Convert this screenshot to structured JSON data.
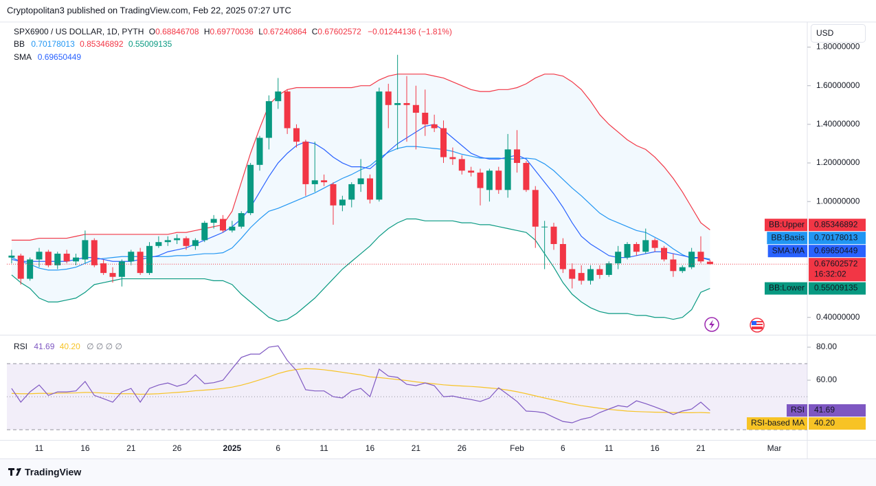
{
  "header": {
    "text": "Cryptopolitan3 published on TradingView.com, Feb 22, 2025 07:27 UTC"
  },
  "footer": {
    "brand": "TradingView"
  },
  "currency": "USD",
  "chart_data": [
    {
      "type": "candlestick",
      "title": "SPX6900 / US DOLLAR, 1D, PYTH",
      "ohlc_labels": [
        "O",
        "H",
        "L",
        "C"
      ],
      "change_text": "−0.01244136 (−1.81%)",
      "legend_labels": [
        "BB",
        "SMA"
      ],
      "countdown": "16:32:02",
      "up_color": "#089981",
      "down_color": "#f23645",
      "categories": [
        null,
        null,
        null,
        "11",
        null,
        null,
        null,
        null,
        "16",
        null,
        null,
        null,
        null,
        "21",
        null,
        null,
        null,
        null,
        "26",
        null,
        null,
        null,
        null,
        null,
        "2025",
        null,
        null,
        null,
        null,
        "6",
        null,
        null,
        null,
        null,
        "11",
        null,
        null,
        null,
        null,
        "16",
        null,
        null,
        null,
        null,
        "21",
        null,
        null,
        null,
        null,
        "26",
        null,
        null,
        null,
        null,
        null,
        "Feb",
        null,
        null,
        null,
        null,
        "6",
        null,
        null,
        null,
        null,
        "11",
        null,
        null,
        null,
        null,
        "16",
        null,
        null,
        null,
        null,
        "21",
        null,
        null,
        null,
        null,
        null,
        null,
        null,
        "Mar",
        null,
        null
      ],
      "open": [
        0.71,
        0.72,
        0.6,
        0.7,
        0.74,
        0.67,
        0.73,
        0.69,
        0.7,
        0.8,
        0.68,
        0.63,
        0.61,
        0.69,
        0.74,
        0.63,
        0.77,
        0.79,
        0.8,
        0.81,
        0.77,
        0.8,
        0.89,
        0.91,
        0.85,
        0.87,
        0.94,
        1.19,
        1.33,
        1.52,
        1.57,
        1.38,
        1.31,
        1.09,
        1.11,
        1.09,
        0.98,
        1.01,
        1.09,
        1.12,
        1.01,
        1.57,
        1.5,
        1.51,
        1.5,
        1.46,
        1.4,
        1.38,
        1.23,
        1.22,
        1.16,
        1.15,
        1.06,
        1.16,
        1.06,
        1.27,
        1.2,
        1.06,
        0.87,
        0.87,
        0.78,
        0.65,
        0.63,
        0.59,
        0.65,
        0.62,
        0.68,
        0.71,
        0.78,
        0.74,
        0.8,
        0.76,
        0.7,
        0.64,
        0.66,
        0.74,
        0.68846708,
        null,
        null,
        null,
        null,
        null,
        null,
        null,
        null,
        null
      ],
      "high": [
        0.75,
        0.73,
        0.71,
        0.76,
        0.75,
        0.74,
        0.75,
        0.73,
        0.85,
        0.81,
        0.7,
        0.66,
        0.7,
        0.75,
        0.76,
        0.79,
        0.82,
        0.82,
        0.83,
        0.82,
        0.81,
        0.9,
        0.93,
        0.93,
        0.9,
        0.95,
        1.2,
        1.34,
        1.55,
        1.64,
        1.58,
        1.4,
        1.32,
        1.31,
        1.14,
        1.1,
        1.03,
        1.1,
        1.22,
        1.14,
        1.59,
        1.61,
        1.76,
        1.65,
        1.6,
        1.58,
        1.45,
        1.42,
        1.28,
        1.24,
        1.18,
        1.17,
        1.17,
        1.18,
        1.35,
        1.37,
        1.21,
        1.08,
        0.9,
        0.89,
        0.81,
        0.68,
        0.67,
        0.67,
        0.67,
        0.69,
        0.77,
        0.79,
        0.79,
        0.86,
        0.81,
        0.77,
        0.73,
        0.67,
        0.76,
        0.82,
        0.69770036,
        null,
        null,
        null,
        null,
        null,
        null,
        null,
        null,
        null
      ],
      "low": [
        0.68,
        0.57,
        0.59,
        0.66,
        0.66,
        0.65,
        0.68,
        0.67,
        0.68,
        0.66,
        0.62,
        0.58,
        0.56,
        0.67,
        0.62,
        0.62,
        0.76,
        0.77,
        0.78,
        0.75,
        0.75,
        0.79,
        0.86,
        0.84,
        0.84,
        0.86,
        0.93,
        1.16,
        1.27,
        1.48,
        1.35,
        1.28,
        1.03,
        1.05,
        1.08,
        0.88,
        0.95,
        0.97,
        1.05,
        0.99,
        1.0,
        1.38,
        1.27,
        1.31,
        1.27,
        1.34,
        1.36,
        1.2,
        1.19,
        1.14,
        1.13,
        0.98,
        1.0,
        1.04,
        1.02,
        1.15,
        1.05,
        0.76,
        0.65,
        0.75,
        0.63,
        0.55,
        0.57,
        0.57,
        0.6,
        0.61,
        0.65,
        0.7,
        0.72,
        0.73,
        0.74,
        0.69,
        0.61,
        0.63,
        0.65,
        0.68,
        0.67240864,
        null,
        null,
        null,
        null,
        null,
        null,
        null,
        null,
        null
      ],
      "close": [
        0.72,
        0.6,
        0.7,
        0.74,
        0.67,
        0.73,
        0.69,
        0.71,
        0.8,
        0.67,
        0.63,
        0.61,
        0.69,
        0.74,
        0.63,
        0.77,
        0.79,
        0.8,
        0.81,
        0.77,
        0.8,
        0.89,
        0.91,
        0.85,
        0.87,
        0.94,
        1.19,
        1.33,
        1.52,
        1.57,
        1.38,
        1.31,
        1.09,
        1.11,
        1.1,
        0.98,
        1.01,
        1.09,
        1.12,
        1.01,
        1.57,
        1.5,
        1.51,
        1.5,
        1.46,
        1.4,
        1.38,
        1.23,
        1.22,
        1.16,
        1.15,
        1.07,
        1.16,
        1.06,
        1.27,
        1.2,
        1.06,
        0.87,
        0.87,
        0.78,
        0.65,
        0.6,
        0.59,
        0.65,
        0.62,
        0.68,
        0.74,
        0.78,
        0.74,
        0.8,
        0.76,
        0.7,
        0.64,
        0.66,
        0.74,
        0.69,
        0.67602572,
        null,
        null,
        null,
        null,
        null,
        null,
        null,
        null,
        null
      ],
      "series": [
        {
          "name": "BB:Upper",
          "color": "#f23645",
          "values": [
            0.8,
            0.8,
            0.8,
            0.81,
            0.81,
            0.81,
            0.81,
            0.82,
            0.83,
            0.83,
            0.83,
            0.83,
            0.83,
            0.83,
            0.83,
            0.83,
            0.83,
            0.83,
            0.84,
            0.84,
            0.85,
            0.86,
            0.87,
            0.88,
            0.95,
            1.1,
            1.25,
            1.38,
            1.5,
            1.55,
            1.58,
            1.59,
            1.59,
            1.59,
            1.59,
            1.59,
            1.59,
            1.59,
            1.6,
            1.6,
            1.63,
            1.65,
            1.66,
            1.66,
            1.66,
            1.66,
            1.65,
            1.64,
            1.62,
            1.6,
            1.58,
            1.57,
            1.57,
            1.58,
            1.58,
            1.59,
            1.61,
            1.64,
            1.66,
            1.66,
            1.65,
            1.62,
            1.58,
            1.52,
            1.45,
            1.4,
            1.36,
            1.32,
            1.29,
            1.27,
            1.23,
            1.18,
            1.12,
            1.05,
            0.97,
            0.89,
            0.85346892,
            null,
            null,
            null,
            null,
            null,
            null,
            null,
            null,
            null
          ]
        },
        {
          "name": "BB:Basis",
          "color": "#2196f3",
          "values": [
            0.71,
            0.69,
            0.675,
            0.655,
            0.645,
            0.645,
            0.65,
            0.66,
            0.68,
            0.7,
            0.705,
            0.71,
            0.715,
            0.715,
            0.715,
            0.715,
            0.715,
            0.715,
            0.72,
            0.72,
            0.725,
            0.73,
            0.73,
            0.735,
            0.76,
            0.81,
            0.865,
            0.91,
            0.95,
            0.965,
            0.985,
            1.005,
            1.025,
            1.045,
            1.07,
            1.095,
            1.12,
            1.14,
            1.165,
            1.185,
            1.225,
            1.255,
            1.275,
            1.285,
            1.285,
            1.28,
            1.275,
            1.27,
            1.26,
            1.245,
            1.235,
            1.225,
            1.225,
            1.225,
            1.22,
            1.22,
            1.225,
            1.22,
            1.195,
            1.16,
            1.115,
            1.07,
            1.03,
            0.985,
            0.94,
            0.91,
            0.89,
            0.87,
            0.85,
            0.84,
            0.815,
            0.79,
            0.755,
            0.725,
            0.705,
            0.71,
            0.70178013,
            null,
            null,
            null,
            null,
            null,
            null,
            null,
            null,
            null
          ]
        },
        {
          "name": "BB:Lower",
          "color": "#089981",
          "values": [
            0.62,
            0.58,
            0.55,
            0.5,
            0.48,
            0.48,
            0.49,
            0.5,
            0.53,
            0.57,
            0.58,
            0.59,
            0.6,
            0.6,
            0.6,
            0.6,
            0.6,
            0.6,
            0.6,
            0.6,
            0.6,
            0.6,
            0.59,
            0.59,
            0.57,
            0.52,
            0.48,
            0.44,
            0.4,
            0.38,
            0.39,
            0.42,
            0.46,
            0.5,
            0.55,
            0.6,
            0.65,
            0.69,
            0.73,
            0.77,
            0.82,
            0.86,
            0.89,
            0.91,
            0.91,
            0.9,
            0.9,
            0.9,
            0.9,
            0.89,
            0.89,
            0.88,
            0.88,
            0.87,
            0.86,
            0.85,
            0.84,
            0.8,
            0.73,
            0.66,
            0.58,
            0.52,
            0.48,
            0.45,
            0.43,
            0.42,
            0.42,
            0.42,
            0.41,
            0.41,
            0.4,
            0.4,
            0.39,
            0.4,
            0.44,
            0.53,
            0.55009135,
            null,
            null,
            null,
            null,
            null,
            null,
            null,
            null,
            null
          ]
        },
        {
          "name": "SMA:MA",
          "color": "#2962ff",
          "values": [
            0.7,
            0.69,
            0.69,
            0.69,
            0.69,
            0.69,
            0.69,
            0.7,
            0.71,
            0.71,
            0.7,
            0.69,
            0.69,
            0.69,
            0.7,
            0.71,
            0.72,
            0.74,
            0.75,
            0.76,
            0.78,
            0.8,
            0.82,
            0.84,
            0.87,
            0.91,
            0.97,
            1.05,
            1.13,
            1.2,
            1.25,
            1.29,
            1.31,
            1.3,
            1.27,
            1.23,
            1.2,
            1.18,
            1.18,
            1.17,
            1.21,
            1.26,
            1.3,
            1.33,
            1.36,
            1.39,
            1.4,
            1.37,
            1.33,
            1.29,
            1.25,
            1.23,
            1.22,
            1.22,
            1.23,
            1.24,
            1.22,
            1.16,
            1.1,
            1.04,
            0.97,
            0.89,
            0.82,
            0.78,
            0.75,
            0.72,
            0.71,
            0.71,
            0.72,
            0.73,
            0.74,
            0.74,
            0.73,
            0.72,
            0.71,
            0.71,
            0.69650449,
            null,
            null,
            null,
            null,
            null,
            null,
            null,
            null,
            null
          ]
        }
      ],
      "band_fill": "rgba(33,150,243,0.06)",
      "ylim": [
        0.31,
        1.93
      ],
      "yticks": [
        {
          "value": 0.4,
          "label": "0.40000000"
        },
        {
          "value": 1.0,
          "label": "1.00000000"
        },
        {
          "value": 1.2,
          "label": "1.20000000"
        },
        {
          "value": 1.4,
          "label": "1.40000000"
        },
        {
          "value": 1.6,
          "label": "1.60000000"
        },
        {
          "value": 1.8,
          "label": "1.80000000"
        }
      ],
      "grid": false
    },
    {
      "type": "line",
      "title": "RSI",
      "legend_extra": "∅ ∅ ∅ ∅",
      "series": [
        {
          "name": "RSI",
          "color": "#7e57c2",
          "values": [
            55.0,
            46.7,
            52.9,
            57.1,
            50.8,
            52.9,
            52.9,
            53.5,
            59.2,
            50.8,
            48.8,
            46.7,
            52.9,
            55.0,
            46.7,
            55.0,
            57.1,
            58.3,
            56.3,
            57.9,
            63.3,
            57.9,
            58.5,
            60.0,
            67.0,
            73.8,
            75.8,
            75.8,
            80.0,
            80.8,
            72.0,
            65.8,
            54.2,
            53.5,
            53.5,
            50.0,
            49.2,
            53.5,
            55.0,
            50.0,
            66.7,
            62.5,
            61.7,
            57.5,
            56.7,
            58.3,
            56.7,
            50.0,
            50.4,
            49.2,
            48.3,
            47.1,
            49.2,
            55.4,
            51.3,
            47.1,
            41.3,
            41.0,
            40.2,
            37.5,
            35.0,
            34.2,
            36.3,
            37.5,
            40.4,
            42.5,
            44.6,
            43.8,
            47.5,
            45.8,
            43.8,
            41.7,
            39.2,
            41.3,
            42.5,
            46.7,
            41.69,
            null,
            null,
            null,
            null,
            null,
            null,
            null,
            null,
            null
          ]
        },
        {
          "name": "RSI-based MA",
          "color": "#f7c325",
          "values": [
            52.0,
            51.8,
            51.8,
            52.0,
            52.0,
            52.1,
            52.2,
            52.3,
            52.6,
            52.5,
            52.2,
            51.9,
            51.8,
            51.8,
            51.5,
            51.6,
            51.8,
            52.2,
            52.6,
            53.0,
            53.6,
            54.0,
            54.4,
            55.0,
            55.8,
            57.0,
            58.5,
            60.2,
            62.0,
            64.0,
            65.5,
            66.5,
            67.0,
            66.8,
            66.3,
            65.6,
            64.8,
            64.0,
            63.2,
            62.0,
            61.6,
            61.0,
            60.4,
            59.8,
            59.0,
            58.4,
            57.8,
            57.2,
            56.8,
            56.5,
            56.2,
            55.8,
            55.3,
            54.8,
            54.0,
            53.0,
            51.8,
            50.5,
            49.2,
            48.0,
            46.8,
            45.6,
            44.6,
            43.8,
            43.0,
            42.3,
            41.8,
            41.3,
            41.0,
            40.8,
            40.6,
            40.5,
            40.4,
            40.3,
            40.3,
            40.4,
            40.2,
            null,
            null,
            null,
            null,
            null,
            null,
            null,
            null,
            null
          ],
          "value_labels": [
            null,
            null,
            null,
            null,
            null,
            null,
            null,
            null,
            null,
            null,
            null,
            null,
            null,
            null,
            null,
            null,
            null,
            null,
            null,
            null,
            null,
            null,
            null,
            null,
            null,
            null,
            null,
            null,
            null,
            null,
            null,
            null,
            null,
            null,
            null,
            null,
            null,
            null,
            null,
            null,
            null,
            null,
            null,
            null,
            null,
            null,
            null,
            null,
            null,
            null,
            null,
            null,
            null,
            null,
            null,
            null,
            null,
            null,
            null,
            null,
            null,
            null,
            null,
            null,
            null,
            null,
            null,
            null,
            null,
            null,
            null,
            null,
            null,
            null,
            null,
            null,
            "40.20",
            null,
            null,
            null,
            null,
            null,
            null,
            null,
            null,
            null
          ]
        }
      ],
      "bands": [
        70,
        50,
        30
      ],
      "band_fill": "rgba(126,87,194,0.1)",
      "ylim": [
        23.8,
        87.1
      ],
      "yticks": [
        {
          "value": 60,
          "label": "60.00"
        },
        {
          "value": 80,
          "label": "80.00"
        }
      ],
      "grid": false
    }
  ]
}
